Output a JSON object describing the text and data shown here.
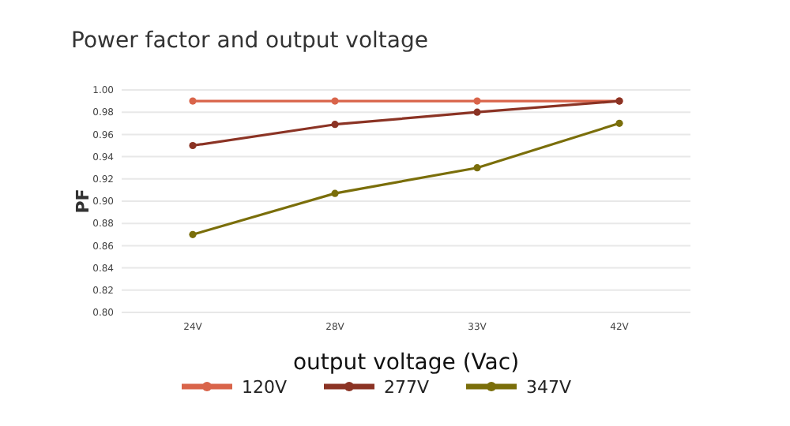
{
  "chart_data": {
    "type": "line",
    "title": "Power factor and output voltage",
    "xlabel": "output voltage (Vac)",
    "ylabel": "PF",
    "categories": [
      "24V",
      "28V",
      "33V",
      "42V"
    ],
    "series": [
      {
        "name": "120V",
        "color": "#d9644a",
        "values": [
          0.99,
          0.99,
          0.99,
          0.99
        ]
      },
      {
        "name": "277V",
        "color": "#8b3324",
        "values": [
          0.95,
          0.969,
          0.98,
          0.99
        ]
      },
      {
        "name": "347V",
        "color": "#7a6e0a",
        "values": [
          0.87,
          0.907,
          0.93,
          0.97
        ]
      }
    ],
    "ylim": [
      0.8,
      1.0
    ],
    "yticks": [
      {
        "value": 0.8,
        "label": "0.80"
      },
      {
        "value": 0.82,
        "label": "0.82"
      },
      {
        "value": 0.84,
        "label": "0.84"
      },
      {
        "value": 0.86,
        "label": "0.86"
      },
      {
        "value": 0.88,
        "label": "0.88"
      },
      {
        "value": 0.9,
        "label": "0.90"
      },
      {
        "value": 0.92,
        "label": "0.92"
      },
      {
        "value": 0.94,
        "label": "0.94"
      },
      {
        "value": 0.96,
        "label": "0.96"
      },
      {
        "value": 0.98,
        "label": "0.98"
      },
      {
        "value": 1.0,
        "label": "1.00"
      }
    ],
    "grid": "y",
    "legend": "bottom",
    "marker": "circle",
    "line_style": "solid"
  }
}
